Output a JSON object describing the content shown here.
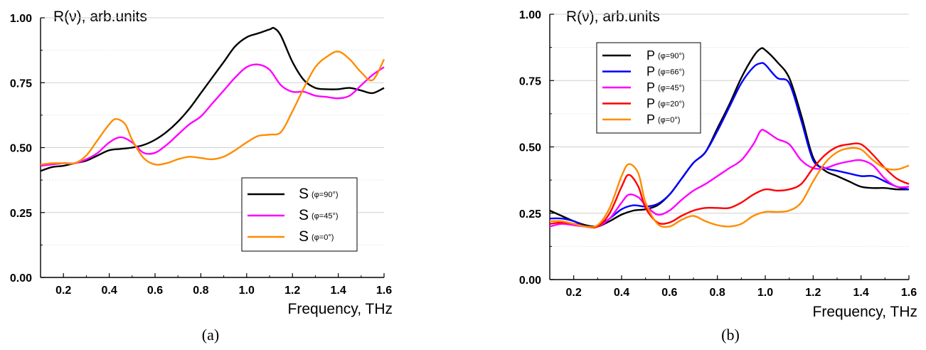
{
  "chart_data": [
    {
      "type": "line",
      "caption": "(a)",
      "ylabel": "R(ν), arb.units",
      "xlabel": "Frequency, THz",
      "xlim": [
        0.1,
        1.6
      ],
      "ylim": [
        0,
        1
      ],
      "xticks": [
        "0.2",
        "0.4",
        "0.6",
        "0.8",
        "1.0",
        "1.2",
        "1.4",
        "1.6"
      ],
      "yticks": [
        "0.00",
        "0.25",
        "0.50",
        "0.75",
        "1.00"
      ],
      "grid": "horizontal",
      "legend": {
        "position": "lower-right",
        "entries": [
          {
            "main": "S",
            "sub": "(φ=90°)",
            "color": "#000000"
          },
          {
            "main": "S",
            "sub": "(φ=45°)",
            "color": "#ff00ff"
          },
          {
            "main": "S",
            "sub": "(φ=0°)",
            "color": "#ff8c00"
          }
        ]
      },
      "series": [
        {
          "color": "#000000",
          "x": [
            0.1,
            0.15,
            0.2,
            0.25,
            0.3,
            0.35,
            0.4,
            0.45,
            0.5,
            0.55,
            0.6,
            0.65,
            0.7,
            0.75,
            0.8,
            0.85,
            0.9,
            0.95,
            1.0,
            1.05,
            1.1,
            1.12,
            1.15,
            1.2,
            1.25,
            1.3,
            1.35,
            1.4,
            1.45,
            1.5,
            1.55,
            1.6
          ],
          "y": [
            0.41,
            0.425,
            0.43,
            0.44,
            0.45,
            0.47,
            0.49,
            0.495,
            0.5,
            0.51,
            0.53,
            0.56,
            0.6,
            0.65,
            0.71,
            0.77,
            0.83,
            0.89,
            0.925,
            0.94,
            0.955,
            0.96,
            0.93,
            0.83,
            0.76,
            0.73,
            0.725,
            0.725,
            0.73,
            0.72,
            0.71,
            0.73
          ]
        },
        {
          "color": "#ff00ff",
          "x": [
            0.1,
            0.15,
            0.2,
            0.25,
            0.3,
            0.35,
            0.4,
            0.45,
            0.5,
            0.55,
            0.6,
            0.65,
            0.7,
            0.75,
            0.8,
            0.85,
            0.9,
            0.95,
            1.0,
            1.05,
            1.1,
            1.15,
            1.2,
            1.25,
            1.3,
            1.35,
            1.4,
            1.45,
            1.5,
            1.55,
            1.6
          ],
          "y": [
            0.43,
            0.435,
            0.44,
            0.44,
            0.455,
            0.48,
            0.52,
            0.54,
            0.52,
            0.48,
            0.48,
            0.51,
            0.55,
            0.59,
            0.62,
            0.67,
            0.72,
            0.77,
            0.81,
            0.82,
            0.8,
            0.74,
            0.715,
            0.715,
            0.7,
            0.695,
            0.69,
            0.7,
            0.74,
            0.78,
            0.81
          ]
        },
        {
          "color": "#ff8c00",
          "x": [
            0.1,
            0.15,
            0.2,
            0.25,
            0.3,
            0.35,
            0.4,
            0.43,
            0.47,
            0.5,
            0.55,
            0.6,
            0.65,
            0.7,
            0.75,
            0.8,
            0.85,
            0.9,
            0.95,
            1.0,
            1.05,
            1.1,
            1.15,
            1.2,
            1.25,
            1.3,
            1.35,
            1.4,
            1.45,
            1.5,
            1.55,
            1.6
          ],
          "y": [
            0.435,
            0.44,
            0.44,
            0.44,
            0.47,
            0.53,
            0.59,
            0.61,
            0.59,
            0.53,
            0.46,
            0.435,
            0.44,
            0.455,
            0.465,
            0.46,
            0.455,
            0.465,
            0.49,
            0.52,
            0.545,
            0.55,
            0.56,
            0.64,
            0.73,
            0.81,
            0.85,
            0.87,
            0.84,
            0.79,
            0.76,
            0.84
          ]
        }
      ]
    },
    {
      "type": "line",
      "caption": "(b)",
      "ylabel": "R(ν), arb.units",
      "xlabel": "Frequency, THz",
      "xlim": [
        0.1,
        1.6
      ],
      "ylim": [
        0,
        1
      ],
      "xticks": [
        "0.2",
        "0.4",
        "0.6",
        "0.8",
        "1.0",
        "1.2",
        "1.4",
        "1.6"
      ],
      "yticks": [
        "0.00",
        "0.25",
        "0.50",
        "0.75",
        "1.00"
      ],
      "grid": "horizontal",
      "legend": {
        "position": "top-left",
        "entries": [
          {
            "main": "P",
            "sub": "(φ=90°)",
            "color": "#000000"
          },
          {
            "main": "P",
            "sub": "(φ=66°)",
            "color": "#0000ff"
          },
          {
            "main": "P",
            "sub": "(φ=45°)",
            "color": "#ff00ff"
          },
          {
            "main": "P",
            "sub": "(φ=20°)",
            "color": "#ff0000"
          },
          {
            "main": "P",
            "sub": "(φ=0°)",
            "color": "#ff8c00"
          }
        ]
      },
      "series": [
        {
          "color": "#000000",
          "x": [
            0.1,
            0.15,
            0.2,
            0.25,
            0.3,
            0.35,
            0.4,
            0.45,
            0.5,
            0.55,
            0.6,
            0.65,
            0.7,
            0.75,
            0.8,
            0.85,
            0.9,
            0.95,
            0.98,
            1.0,
            1.05,
            1.1,
            1.15,
            1.2,
            1.25,
            1.3,
            1.35,
            1.4,
            1.45,
            1.5,
            1.55,
            1.6
          ],
          "y": [
            0.26,
            0.24,
            0.22,
            0.205,
            0.2,
            0.22,
            0.245,
            0.26,
            0.265,
            0.28,
            0.32,
            0.38,
            0.44,
            0.48,
            0.57,
            0.66,
            0.76,
            0.84,
            0.87,
            0.865,
            0.82,
            0.76,
            0.62,
            0.46,
            0.41,
            0.39,
            0.37,
            0.35,
            0.345,
            0.345,
            0.34,
            0.34
          ]
        },
        {
          "color": "#0000ff",
          "x": [
            0.1,
            0.15,
            0.2,
            0.25,
            0.3,
            0.35,
            0.4,
            0.45,
            0.5,
            0.55,
            0.6,
            0.65,
            0.7,
            0.75,
            0.8,
            0.85,
            0.9,
            0.95,
            0.98,
            1.0,
            1.05,
            1.1,
            1.15,
            1.2,
            1.25,
            1.3,
            1.35,
            1.4,
            1.45,
            1.5,
            1.55,
            1.6
          ],
          "y": [
            0.23,
            0.23,
            0.22,
            0.2,
            0.2,
            0.23,
            0.265,
            0.28,
            0.275,
            0.285,
            0.32,
            0.38,
            0.44,
            0.48,
            0.56,
            0.65,
            0.74,
            0.8,
            0.815,
            0.81,
            0.76,
            0.74,
            0.6,
            0.45,
            0.42,
            0.41,
            0.4,
            0.39,
            0.39,
            0.37,
            0.35,
            0.34
          ]
        },
        {
          "color": "#ff00ff",
          "x": [
            0.1,
            0.15,
            0.2,
            0.25,
            0.3,
            0.35,
            0.4,
            0.43,
            0.47,
            0.5,
            0.55,
            0.6,
            0.65,
            0.7,
            0.75,
            0.8,
            0.85,
            0.9,
            0.95,
            0.98,
            1.0,
            1.05,
            1.1,
            1.15,
            1.2,
            1.25,
            1.3,
            1.35,
            1.4,
            1.45,
            1.5,
            1.55,
            1.6
          ],
          "y": [
            0.2,
            0.21,
            0.205,
            0.2,
            0.2,
            0.23,
            0.29,
            0.32,
            0.31,
            0.28,
            0.245,
            0.26,
            0.3,
            0.335,
            0.36,
            0.39,
            0.42,
            0.45,
            0.51,
            0.56,
            0.56,
            0.53,
            0.51,
            0.45,
            0.42,
            0.42,
            0.435,
            0.445,
            0.45,
            0.43,
            0.38,
            0.35,
            0.35
          ]
        },
        {
          "color": "#ff0000",
          "x": [
            0.1,
            0.15,
            0.2,
            0.25,
            0.3,
            0.35,
            0.4,
            0.43,
            0.47,
            0.5,
            0.55,
            0.6,
            0.65,
            0.7,
            0.75,
            0.8,
            0.85,
            0.9,
            0.95,
            1.0,
            1.05,
            1.1,
            1.15,
            1.2,
            1.25,
            1.3,
            1.35,
            1.4,
            1.45,
            1.5,
            1.55,
            1.6
          ],
          "y": [
            0.21,
            0.215,
            0.21,
            0.2,
            0.2,
            0.25,
            0.35,
            0.395,
            0.35,
            0.27,
            0.215,
            0.215,
            0.24,
            0.26,
            0.27,
            0.27,
            0.27,
            0.29,
            0.32,
            0.34,
            0.335,
            0.34,
            0.36,
            0.42,
            0.47,
            0.5,
            0.51,
            0.51,
            0.47,
            0.42,
            0.38,
            0.36
          ]
        },
        {
          "color": "#ff8c00",
          "x": [
            0.1,
            0.15,
            0.2,
            0.25,
            0.3,
            0.35,
            0.4,
            0.43,
            0.47,
            0.5,
            0.55,
            0.6,
            0.65,
            0.7,
            0.75,
            0.8,
            0.85,
            0.9,
            0.95,
            1.0,
            1.05,
            1.1,
            1.15,
            1.2,
            1.25,
            1.3,
            1.35,
            1.4,
            1.45,
            1.5,
            1.55,
            1.6
          ],
          "y": [
            0.22,
            0.22,
            0.21,
            0.2,
            0.205,
            0.27,
            0.39,
            0.435,
            0.4,
            0.29,
            0.21,
            0.2,
            0.225,
            0.24,
            0.22,
            0.205,
            0.2,
            0.21,
            0.24,
            0.255,
            0.255,
            0.26,
            0.29,
            0.37,
            0.44,
            0.48,
            0.495,
            0.49,
            0.45,
            0.42,
            0.415,
            0.43
          ]
        }
      ]
    }
  ]
}
